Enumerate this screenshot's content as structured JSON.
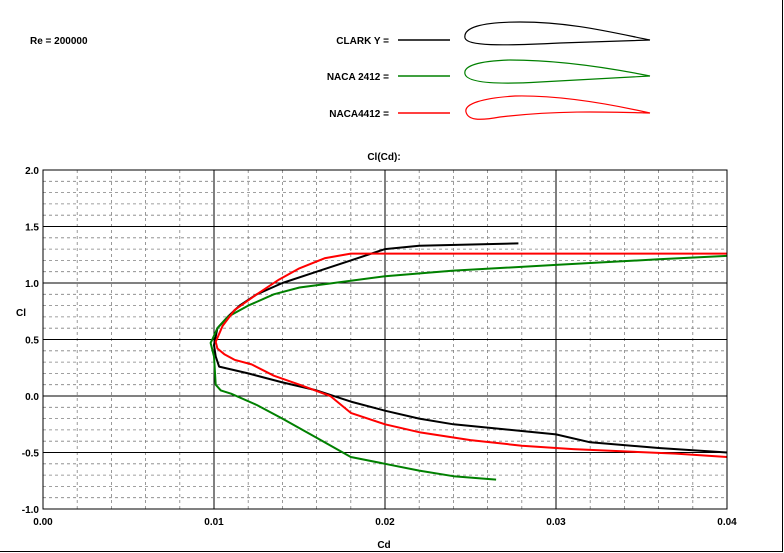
{
  "re_label": "Re = 200000",
  "legend": [
    {
      "label": "CLARK Y =",
      "color": "#000000"
    },
    {
      "label": "NACA 2412 =",
      "color": "#008000"
    },
    {
      "label": "NACA4412 =",
      "color": "#ff0000"
    }
  ],
  "chart_data": {
    "type": "line",
    "title": "Cl(Cd):",
    "xlabel": "Cd",
    "ylabel": "Cl",
    "xlim": [
      0.0,
      0.04
    ],
    "ylim": [
      -1.0,
      2.0
    ],
    "grid": true,
    "legend_position": "top-right",
    "x_ticks": [
      "0.00",
      "0.01",
      "0.02",
      "0.03",
      "0.04"
    ],
    "y_ticks": [
      "-1.0",
      "-0.5",
      "0.0",
      "0.5",
      "1.0",
      "1.5",
      "2.0"
    ],
    "series": [
      {
        "name": "CLARK Y",
        "color": "#000000",
        "x": [
          0.0278,
          0.022,
          0.02,
          0.018,
          0.016,
          0.014,
          0.0125,
          0.0115,
          0.0108,
          0.0102,
          0.01,
          0.0101,
          0.0103,
          0.012,
          0.014,
          0.016,
          0.018,
          0.02,
          0.022,
          0.024,
          0.026,
          0.028,
          0.03,
          0.032,
          0.036,
          0.04
        ],
        "y": [
          1.35,
          1.33,
          1.3,
          1.2,
          1.1,
          1.0,
          0.9,
          0.8,
          0.7,
          0.6,
          0.45,
          0.35,
          0.26,
          0.2,
          0.12,
          0.05,
          -0.05,
          -0.13,
          -0.2,
          -0.25,
          -0.28,
          -0.31,
          -0.34,
          -0.41,
          -0.46,
          -0.5
        ]
      },
      {
        "name": "NACA 2412",
        "color": "#008000",
        "x": [
          0.04,
          0.036,
          0.03,
          0.024,
          0.02,
          0.017,
          0.015,
          0.0135,
          0.012,
          0.0108,
          0.0102,
          0.0099,
          0.0098,
          0.01,
          0.0101,
          0.0104,
          0.011,
          0.0125,
          0.014,
          0.016,
          0.018,
          0.02,
          0.022,
          0.024,
          0.0265
        ],
        "y": [
          1.24,
          1.21,
          1.16,
          1.11,
          1.06,
          1.0,
          0.96,
          0.9,
          0.8,
          0.7,
          0.6,
          0.5,
          0.47,
          0.35,
          0.1,
          0.05,
          0.02,
          -0.08,
          -0.2,
          -0.37,
          -0.54,
          -0.6,
          -0.66,
          -0.71,
          -0.74
        ]
      },
      {
        "name": "NACA4412",
        "color": "#ff0000",
        "x": [
          0.04,
          0.03,
          0.025,
          0.02,
          0.018,
          0.0165,
          0.015,
          0.0138,
          0.0125,
          0.0112,
          0.0105,
          0.0101,
          0.0102,
          0.0106,
          0.0112,
          0.0122,
          0.0135,
          0.015,
          0.0168,
          0.018,
          0.02,
          0.022,
          0.025,
          0.028,
          0.031,
          0.034,
          0.037,
          0.04
        ],
        "y": [
          1.26,
          1.26,
          1.26,
          1.26,
          1.26,
          1.22,
          1.13,
          1.03,
          0.9,
          0.76,
          0.62,
          0.48,
          0.42,
          0.37,
          0.32,
          0.28,
          0.18,
          0.1,
          0.0,
          -0.15,
          -0.25,
          -0.32,
          -0.39,
          -0.44,
          -0.47,
          -0.49,
          -0.51,
          -0.54
        ]
      }
    ]
  }
}
